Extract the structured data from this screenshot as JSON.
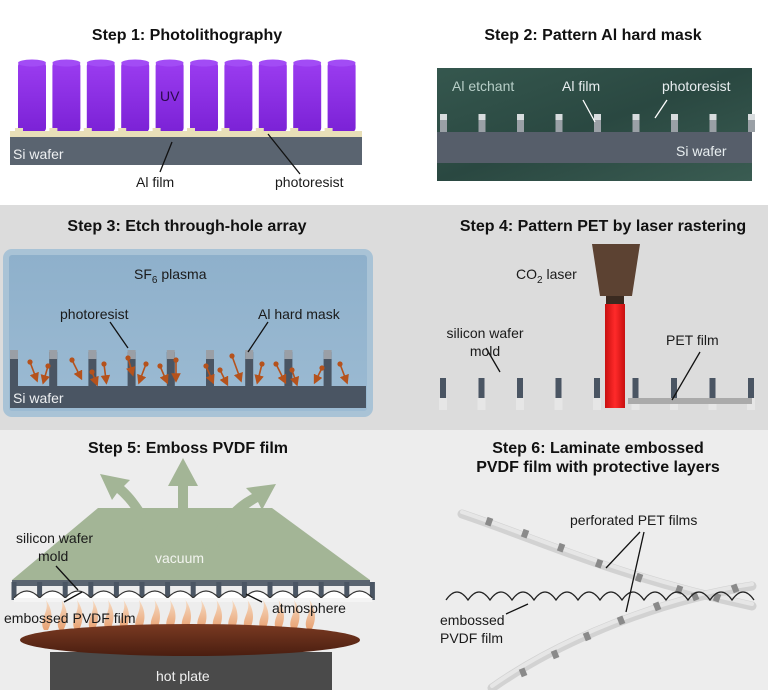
{
  "steps": [
    {
      "title": "Step 1: Photolithography",
      "labels": {
        "uv": "UV",
        "substrate": "Si wafer",
        "film": "Al film",
        "resist": "photoresist"
      }
    },
    {
      "title": "Step 2: Pattern Al hard mask",
      "labels": {
        "etchant": "Al etchant",
        "film": "Al film",
        "resist": "photoresist",
        "substrate": "Si wafer"
      }
    },
    {
      "title": "Step 3: Etch through-hole array",
      "labels": {
        "plasma_prefix": "SF",
        "plasma_sub": "6",
        "plasma_suffix": " plasma",
        "resist": "photoresist",
        "mask": "Al hard mask",
        "substrate": "Si wafer"
      }
    },
    {
      "title": "Step 4: Pattern PET by laser rastering",
      "labels": {
        "laser_prefix": "CO",
        "laser_sub": "2",
        "laser_suffix": " laser",
        "mold_line1": "silicon wafer",
        "mold_line2": "mold",
        "film": "PET film"
      }
    },
    {
      "title": "Step 5: Emboss PVDF film",
      "labels": {
        "vacuum": "vacuum",
        "mold_line1": "silicon wafer",
        "mold_line2": "mold",
        "atmosphere": "atmosphere",
        "film": "embossed PVDF film",
        "plate": "hot plate"
      }
    },
    {
      "title_line1": "Step 6: Laminate embossed",
      "title_line2": "PVDF film with protective layers",
      "labels": {
        "pet": "perforated PET films",
        "pvdf_line1": "embossed",
        "pvdf_line2": "PVDF film"
      }
    }
  ],
  "colors": {
    "uv": "#8a2be2",
    "si": "#5a6470",
    "etchant": "#2f5048",
    "plasma": "#8fb1cc",
    "ions": "#b5521c",
    "laser": "#e01818",
    "vacuum": "#9bb090",
    "hotplate": "#5e2a18"
  }
}
